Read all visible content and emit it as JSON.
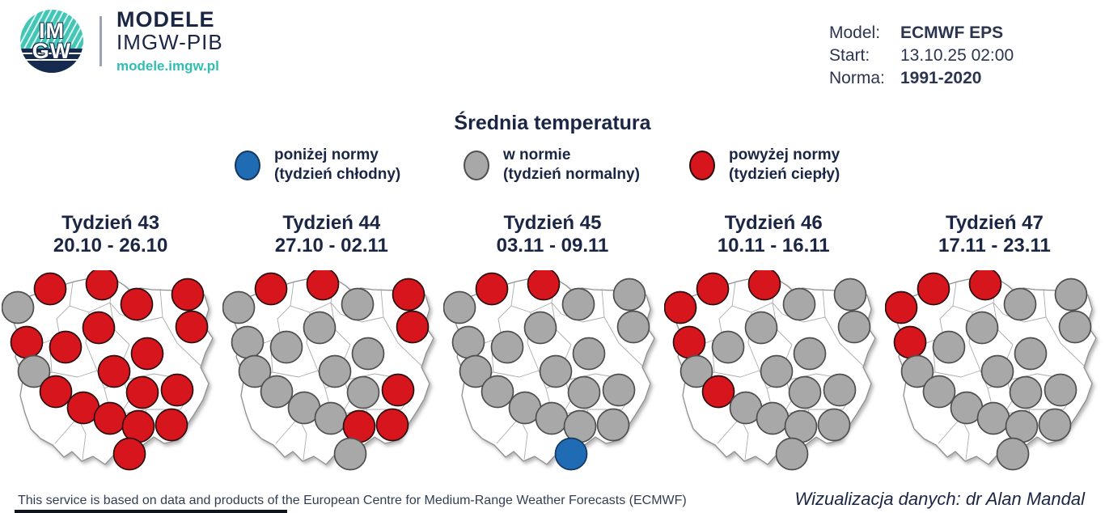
{
  "header": {
    "logo": {
      "im": "IM",
      "gw": "GW",
      "brand_line1": "MODELE",
      "brand_line2": "IMGW-PIB",
      "brand_url": "modele.imgw.pl"
    },
    "model_info": {
      "model_label": "Model:",
      "model_value": "ECMWF EPS",
      "start_label": "Start:",
      "start_value": "13.10.25 02:00",
      "norma_label": "Norma:",
      "norma_value": "1991-2020"
    }
  },
  "chart_data": {
    "type": "scatter",
    "title": "Średnia temperatura",
    "legend": [
      {
        "category": "below",
        "line1": "poniżej normy",
        "line2": "(tydzień chłodny)"
      },
      {
        "category": "normal",
        "line1": "w normie",
        "line2": "(tydzień normalny)"
      },
      {
        "category": "above",
        "line1": "powyżej normy",
        "line2": "(tydzień ciepły)"
      }
    ],
    "category_colors": {
      "below": {
        "fill": "#1f6cb5",
        "stroke": "#16375e"
      },
      "normal": {
        "fill": "#a8a8a8",
        "stroke": "#4f4f4f"
      },
      "above": {
        "fill": "#d7151d",
        "stroke": "#2a1010"
      }
    },
    "map_viewbox": [
      0,
      0,
      270,
      265
    ],
    "dot_radius": 19.5,
    "dot_positions": [
      [
        60,
        23
      ],
      [
        124,
        17
      ],
      [
        167,
        42
      ],
      [
        230,
        30
      ],
      [
        20,
        46
      ],
      [
        235,
        70
      ],
      [
        31,
        89
      ],
      [
        79,
        95
      ],
      [
        120,
        71
      ],
      [
        40,
        125
      ],
      [
        139,
        125
      ],
      [
        180,
        103
      ],
      [
        67,
        150
      ],
      [
        174,
        151
      ],
      [
        217,
        148
      ],
      [
        101,
        170
      ],
      [
        134,
        183
      ],
      [
        169,
        193
      ],
      [
        210,
        191
      ],
      [
        158,
        227
      ]
    ],
    "weeks": [
      {
        "label": "Tydzień 43",
        "dates": "20.10 - 26.10",
        "dot_categories": [
          "above",
          "above",
          "above",
          "above",
          "normal",
          "above",
          "above",
          "above",
          "above",
          "normal",
          "above",
          "above",
          "above",
          "above",
          "above",
          "above",
          "above",
          "above",
          "above",
          "above"
        ]
      },
      {
        "label": "Tydzień 44",
        "dates": "27.10 - 02.11",
        "dot_categories": [
          "above",
          "above",
          "normal",
          "above",
          "normal",
          "above",
          "normal",
          "normal",
          "normal",
          "normal",
          "normal",
          "normal",
          "normal",
          "normal",
          "above",
          "normal",
          "normal",
          "above",
          "above",
          "normal"
        ]
      },
      {
        "label": "Tydzień 45",
        "dates": "03.11 - 09.11",
        "dot_categories": [
          "above",
          "above",
          "normal",
          "normal",
          "normal",
          "normal",
          "normal",
          "normal",
          "normal",
          "normal",
          "normal",
          "normal",
          "normal",
          "normal",
          "normal",
          "normal",
          "normal",
          "normal",
          "normal",
          "below"
        ]
      },
      {
        "label": "Tydzień 46",
        "dates": "10.11 - 16.11",
        "dot_categories": [
          "above",
          "above",
          "normal",
          "normal",
          "above",
          "normal",
          "above",
          "normal",
          "normal",
          "normal",
          "normal",
          "normal",
          "above",
          "normal",
          "normal",
          "normal",
          "normal",
          "normal",
          "normal",
          "normal"
        ]
      },
      {
        "label": "Tydzień 47",
        "dates": "17.11 - 23.11",
        "dot_categories": [
          "above",
          "above",
          "normal",
          "normal",
          "above",
          "normal",
          "above",
          "normal",
          "normal",
          "normal",
          "normal",
          "normal",
          "normal",
          "normal",
          "normal",
          "normal",
          "normal",
          "normal",
          "normal",
          "normal"
        ]
      }
    ],
    "counts_summary": [
      {
        "week": "Tydzień 43",
        "above": 18,
        "normal": 2,
        "below": 0
      },
      {
        "week": "Tydzień 44",
        "above": 7,
        "normal": 13,
        "below": 0
      },
      {
        "week": "Tydzień 45",
        "above": 2,
        "normal": 17,
        "below": 1
      },
      {
        "week": "Tydzień 46",
        "above": 5,
        "normal": 15,
        "below": 0
      },
      {
        "week": "Tydzień 47",
        "above": 4,
        "normal": 16,
        "below": 0
      }
    ]
  },
  "footer": {
    "left": "This service is based on data and products of the European Centre for Medium-Range Weather Forecasts (ECMWF)",
    "right": "Wizualizacja danych: dr Alan Mandal"
  }
}
